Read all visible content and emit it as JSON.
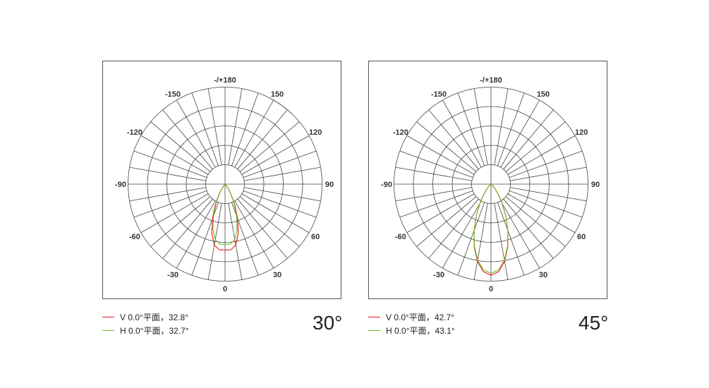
{
  "chart_data": [
    {
      "type": "polar",
      "grid": true,
      "angle_labels": [
        "0",
        "30",
        "60",
        "90",
        "120",
        "150",
        "-/+180",
        "-150",
        "-120",
        "-90",
        "-60",
        "-30"
      ],
      "angles": [
        -55,
        -50,
        -45,
        -40,
        -35,
        -30,
        -25,
        -20,
        -15,
        -10,
        -5,
        0,
        5,
        10,
        15,
        20,
        25,
        30,
        35,
        40,
        45,
        50,
        55
      ],
      "series": [
        {
          "name": "V 0.0°平面，32.8°",
          "color": "#e8141c",
          "values": [
            0,
            0.002,
            0.008,
            0.024,
            0.062,
            0.131,
            0.241,
            0.381,
            0.526,
            0.638,
            0.68,
            0.68,
            0.68,
            0.638,
            0.526,
            0.381,
            0.241,
            0.131,
            0.062,
            0.024,
            0.008,
            0.002,
            0
          ]
        },
        {
          "name": "H 0.0°平面，32.7°",
          "color": "#6cc024",
          "values": [
            0,
            0.002,
            0.007,
            0.022,
            0.056,
            0.12,
            0.219,
            0.347,
            0.48,
            0.582,
            0.62,
            0.62,
            0.62,
            0.582,
            0.48,
            0.347,
            0.219,
            0.12,
            0.056,
            0.022,
            0.007,
            0.002,
            0
          ]
        }
      ],
      "beam_label": "30°"
    },
    {
      "type": "polar",
      "grid": true,
      "angle_labels": [
        "0",
        "30",
        "60",
        "90",
        "120",
        "150",
        "-/+180",
        "-150",
        "-120",
        "-90",
        "-60",
        "-30"
      ],
      "angles": [
        -55,
        -50,
        -45,
        -40,
        -35,
        -30,
        -25,
        -20,
        -15,
        -10,
        -5,
        0,
        5,
        10,
        15,
        20,
        25,
        30,
        35,
        40,
        45,
        50,
        55
      ],
      "series": [
        {
          "name": "V 0.0°平面，42.7°",
          "color": "#e8141c",
          "values": [
            0.004,
            0.012,
            0.031,
            0.069,
            0.133,
            0.229,
            0.358,
            0.511,
            0.669,
            0.809,
            0.905,
            0.94,
            0.905,
            0.809,
            0.669,
            0.511,
            0.358,
            0.229,
            0.133,
            0.069,
            0.031,
            0.012,
            0.004
          ]
        },
        {
          "name": "H 0.0°平面，43.1°",
          "color": "#6cc024",
          "values": [
            0.005,
            0.014,
            0.034,
            0.073,
            0.138,
            0.235,
            0.362,
            0.51,
            0.661,
            0.796,
            0.887,
            0.92,
            0.887,
            0.796,
            0.661,
            0.51,
            0.362,
            0.235,
            0.138,
            0.073,
            0.034,
            0.014,
            0.005
          ]
        }
      ],
      "beam_label": "45°"
    }
  ]
}
